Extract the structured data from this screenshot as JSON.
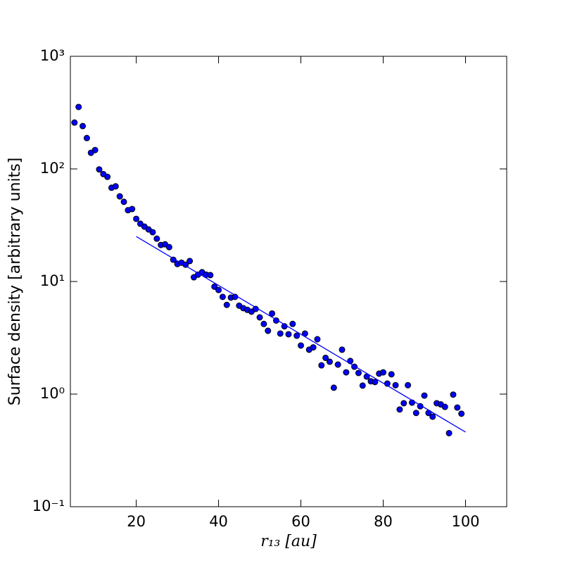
{
  "chart_data": {
    "type": "scatter",
    "xlabel": "r₁₃ [au]",
    "ylabel": "Surface density [arbitrary units]",
    "xlim": [
      4,
      110
    ],
    "xticks": [
      20,
      40,
      60,
      80,
      100
    ],
    "ylim": [
      0.1,
      1000
    ],
    "ylog": true,
    "yticks": [
      {
        "value": 0.1,
        "label": "10⁻¹"
      },
      {
        "value": 1,
        "label": "10⁰"
      },
      {
        "value": 10,
        "label": "10¹"
      },
      {
        "value": 100,
        "label": "10²"
      },
      {
        "value": 1000,
        "label": "10³"
      }
    ],
    "series": [
      {
        "type": "scatter",
        "color": "#0000ff",
        "x": [
          5,
          6,
          7,
          8,
          9,
          10,
          11,
          12,
          13,
          14,
          15,
          16,
          17,
          18,
          19,
          20,
          21,
          22,
          23,
          24,
          25,
          26,
          27,
          28,
          29,
          30,
          31,
          32,
          33,
          34,
          35,
          36,
          37,
          38,
          39,
          40,
          41,
          42,
          43,
          44,
          45,
          46,
          47,
          48,
          49,
          50,
          51,
          52,
          53,
          54,
          55,
          56,
          57,
          58,
          59,
          60,
          61,
          62,
          63,
          64,
          65,
          66,
          67,
          68,
          69,
          70,
          71,
          72,
          73,
          74,
          75,
          76,
          77,
          78,
          79,
          80,
          81,
          82,
          83,
          84,
          85,
          86,
          87,
          88,
          89,
          90,
          91,
          92,
          93,
          94,
          95,
          96,
          97,
          98,
          99
        ],
        "values": [
          258,
          355,
          240,
          188,
          139,
          147,
          99,
          90,
          85,
          68,
          70,
          57,
          51,
          43,
          44,
          36,
          32.6,
          30.7,
          29,
          27.4,
          24,
          21.1,
          21.4,
          20.2,
          15.6,
          14.3,
          14.7,
          14.1,
          15.2,
          10.9,
          11.5,
          12.1,
          11.5,
          11.4,
          9.0,
          8.4,
          7.3,
          6.2,
          7.2,
          7.3,
          6.1,
          5.8,
          5.6,
          5.4,
          5.7,
          4.8,
          4.2,
          3.65,
          5.2,
          4.5,
          3.45,
          4.0,
          3.4,
          4.2,
          3.3,
          2.7,
          3.45,
          2.48,
          2.6,
          3.07,
          1.8,
          2.1,
          1.94,
          1.14,
          1.83,
          2.48,
          1.56,
          1.97,
          1.75,
          1.54,
          1.19,
          1.43,
          1.3,
          1.28,
          1.52,
          1.56,
          1.24,
          1.5,
          1.2,
          0.73,
          0.83,
          1.2,
          0.84,
          0.68,
          0.78,
          0.97,
          0.68,
          0.63,
          0.83,
          0.81,
          0.77,
          0.45,
          0.99,
          0.76,
          0.67
        ]
      },
      {
        "type": "line",
        "color": "#0000ff",
        "x": [
          20,
          100
        ],
        "values": [
          25.1,
          0.46
        ]
      }
    ]
  }
}
